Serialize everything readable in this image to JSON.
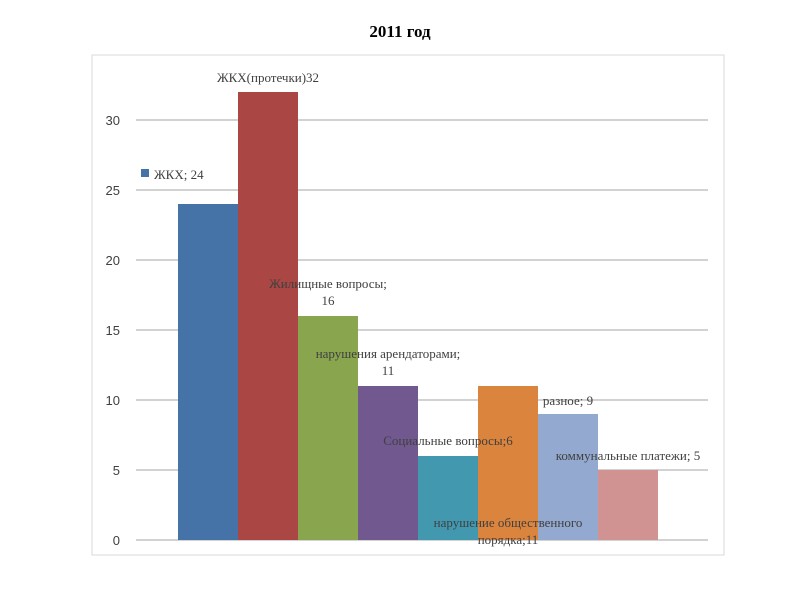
{
  "slide": {
    "title": "2011 год"
  },
  "chart_data": {
    "type": "bar",
    "title": "2011 год",
    "xlabel": "",
    "ylabel": "",
    "ylim": [
      0,
      35
    ],
    "yticks": [
      0,
      5,
      10,
      15,
      20,
      25,
      30
    ],
    "grid": true,
    "legend": "inside-left, single entry beside first bar",
    "categories": [
      "ЖКХ",
      "ЖКХ(протечки)",
      "Жилищные вопросы",
      "нарушения арендаторами",
      "Социальные вопросы",
      "нарушение общественного порядка",
      "разное",
      "коммунальные платежи"
    ],
    "values": [
      24,
      32,
      16,
      11,
      6,
      11,
      9,
      5
    ],
    "colors": [
      "#4573A8",
      "#AA4643",
      "#89A54E",
      "#71588F",
      "#4198AF",
      "#DB843D",
      "#93A9CF",
      "#D19392"
    ],
    "labels": [
      [
        "ЖКХ; 24"
      ],
      [
        "ЖКХ(протечки)32"
      ],
      [
        "Жилищные вопросы;",
        "16"
      ],
      [
        "нарушения арендаторами;",
        "11"
      ],
      [
        "Социальные вопросы;6"
      ],
      [
        "нарушение общественного",
        "порядка;11"
      ],
      [
        "разное; 9"
      ],
      [
        "коммунальные платежи; 5"
      ]
    ]
  }
}
